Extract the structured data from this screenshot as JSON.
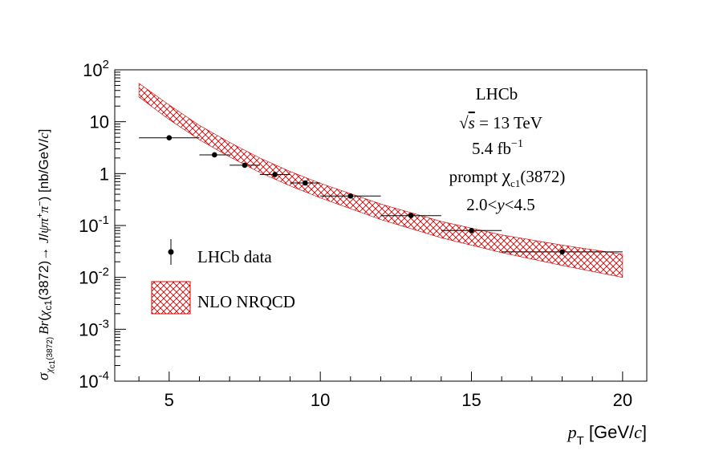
{
  "chart_data": {
    "type": "scatter",
    "title": "",
    "xlabel": {
      "var": "p",
      "sub": "T",
      "units": " [GeV/",
      "units_c": "c",
      "units_end": "]"
    },
    "ylabel": "σχc1(3872) Br(χc1(3872)→ J/ψπ⁺π⁻) [nb/GeV/c]",
    "xlim": [
      3.2,
      20.8
    ],
    "ylim_log10": [
      -4,
      2
    ],
    "x_ticks": [
      5,
      10,
      15,
      20
    ],
    "x_tick_labels": [
      "5",
      "10",
      "15",
      "20"
    ],
    "y_ticks": [
      {
        "exp": -4,
        "label": "10",
        "sup": "-4"
      },
      {
        "exp": -3,
        "label": "10",
        "sup": "-3"
      },
      {
        "exp": -2,
        "label": "10",
        "sup": "-2"
      },
      {
        "exp": -1,
        "label": "10",
        "sup": "-1"
      },
      {
        "exp": 0,
        "label": "1",
        "sup": ""
      },
      {
        "exp": 1,
        "label": "10",
        "sup": ""
      },
      {
        "exp": 2,
        "label": "10",
        "sup": "2"
      }
    ],
    "series": [
      {
        "name": "LHCb data",
        "points": [
          {
            "x": 5.0,
            "xlo": 4.0,
            "xhi": 6.0,
            "y": 4.9
          },
          {
            "x": 6.5,
            "xlo": 6.0,
            "xhi": 7.0,
            "y": 2.3
          },
          {
            "x": 7.5,
            "xlo": 7.0,
            "xhi": 8.0,
            "y": 1.45
          },
          {
            "x": 8.5,
            "xlo": 8.0,
            "xhi": 9.0,
            "y": 0.96
          },
          {
            "x": 9.5,
            "xlo": 9.0,
            "xhi": 10.0,
            "y": 0.66
          },
          {
            "x": 11.0,
            "xlo": 10.0,
            "xhi": 12.0,
            "y": 0.37
          },
          {
            "x": 13.0,
            "xlo": 12.0,
            "xhi": 14.0,
            "y": 0.155
          },
          {
            "x": 15.0,
            "xlo": 14.0,
            "xhi": 16.0,
            "y": 0.08
          },
          {
            "x": 18.0,
            "xlo": 16.0,
            "xhi": 20.0,
            "y": 0.031
          }
        ]
      },
      {
        "name": "NLO NRQCD",
        "band": [
          {
            "x": 4.0,
            "lo": 30,
            "hi": 55
          },
          {
            "x": 5.0,
            "lo": 11,
            "hi": 21
          },
          {
            "x": 6.0,
            "lo": 4.5,
            "hi": 8.5
          },
          {
            "x": 7.0,
            "lo": 2.1,
            "hi": 4.0
          },
          {
            "x": 8.0,
            "lo": 1.05,
            "hi": 2.0
          },
          {
            "x": 9.0,
            "lo": 0.58,
            "hi": 1.1
          },
          {
            "x": 10.0,
            "lo": 0.34,
            "hi": 0.65
          },
          {
            "x": 12.0,
            "lo": 0.13,
            "hi": 0.26
          },
          {
            "x": 14.0,
            "lo": 0.058,
            "hi": 0.12
          },
          {
            "x": 16.0,
            "lo": 0.03,
            "hi": 0.066
          },
          {
            "x": 18.0,
            "lo": 0.017,
            "hi": 0.042
          },
          {
            "x": 20.0,
            "lo": 0.01,
            "hi": 0.028
          }
        ]
      }
    ],
    "legend": [
      "LHCb data",
      "NLO NRQCD"
    ],
    "annotations": {
      "experiment": "LHCb",
      "energy_sqrt": "s",
      "energy_rest": " = 13 TeV",
      "lumi_value": "5.4 fb",
      "lumi_sup": "−1",
      "state_prefix": "prompt ",
      "state_chi": "χ",
      "state_sub": "c1",
      "state_suffix": "(3872)",
      "rapidity_lo": "2.0<",
      "rapidity_var": "y",
      "rapidity_hi": "<4.5"
    },
    "colors": {
      "band": "#d00000",
      "data": "#000000"
    }
  }
}
